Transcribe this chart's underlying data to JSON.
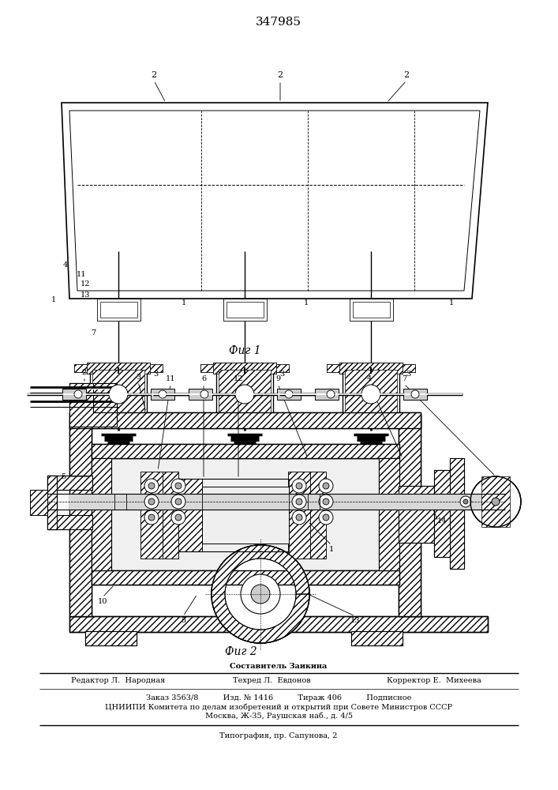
{
  "patent_number": "347985",
  "fig1_caption": "Фиг 1",
  "fig2_caption": "Фиг 2",
  "bg_color": "#ffffff",
  "line_color": "#000000",
  "footer": {
    "line1_center": "Составитель Заикина",
    "line2_left": "Редактор Л.  Народная",
    "line2_center": "Техред Л.  Евдонов",
    "line2_right": "Корректор Е.  Михеева",
    "line3": "Заказ 3563/8          Изд. № 1416          Тираж 406          Подписное",
    "line4": "ЦНИИПИ Комитета по делам изобретений и открытий при Совете Министров СССР",
    "line5": "Москва, Ж-35, Раушская наб., д. 4/5",
    "line6": "Типография, пр. Сапунова, 2"
  }
}
